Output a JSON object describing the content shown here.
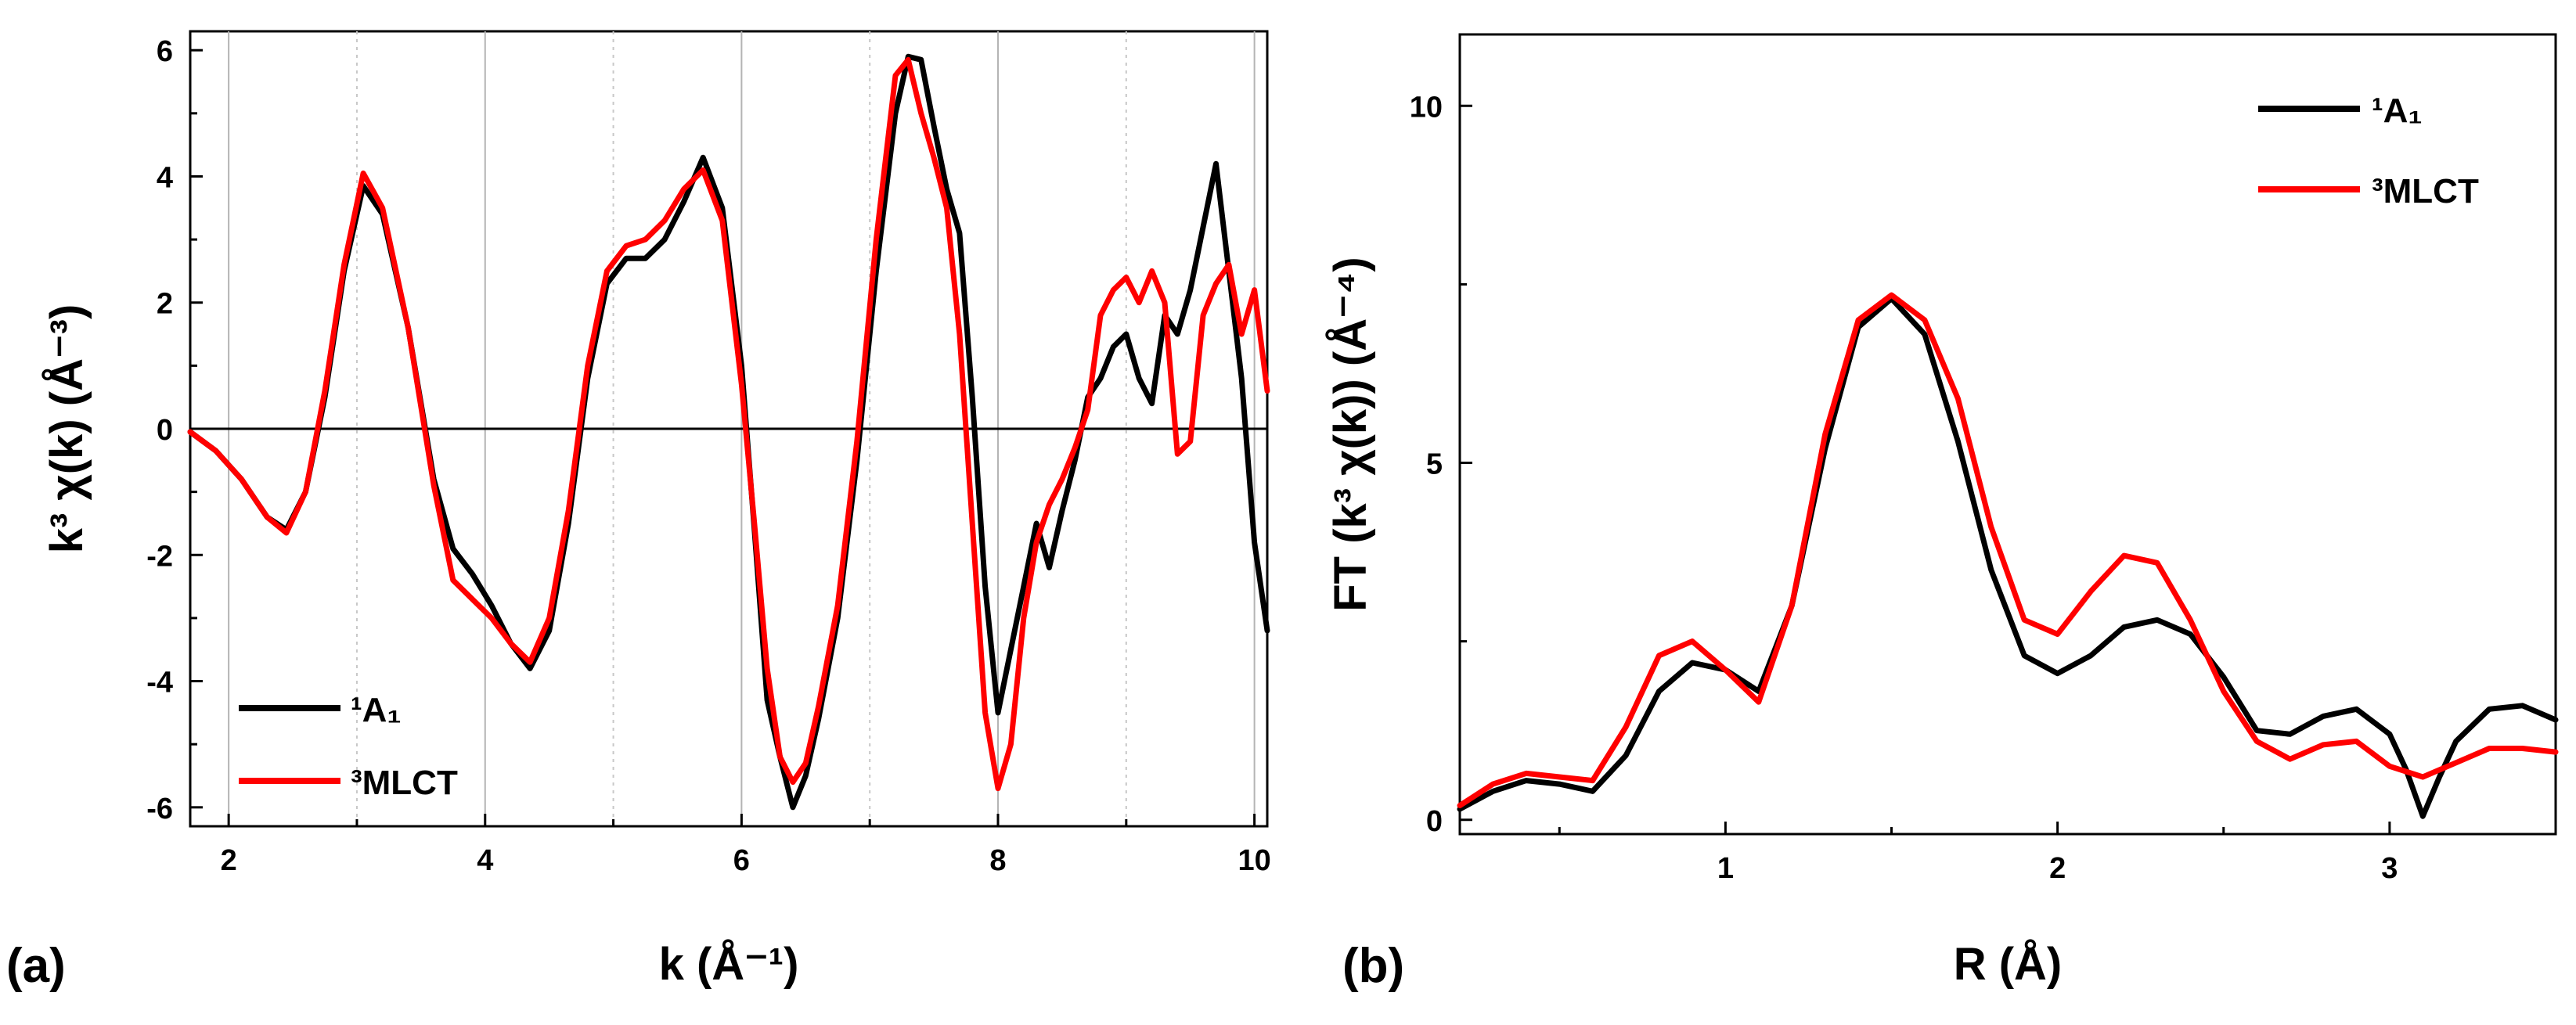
{
  "panels": {
    "a": {
      "label": "(a)"
    },
    "b": {
      "label": "(b)"
    }
  },
  "chart_data": [
    {
      "type": "line",
      "panel": "a",
      "xlabel": "k (Å⁻¹)",
      "ylabel": "k³ χ(k) (Å⁻³)",
      "xlim": [
        1.7,
        10.1
      ],
      "ylim": [
        -6.3,
        6.3
      ],
      "xticks": [
        2,
        4,
        6,
        8,
        10
      ],
      "yticks": [
        -6,
        -4,
        -2,
        0,
        2,
        4,
        6
      ],
      "vgrid_solid": [
        2,
        4,
        6,
        8,
        10
      ],
      "vgrid_dotted": [
        3,
        5,
        7,
        9
      ],
      "zero_line": true,
      "legend_position": "bottom-left",
      "series": [
        {
          "name": "¹A₁",
          "color": "#000000",
          "x": [
            1.7,
            1.9,
            2.1,
            2.3,
            2.45,
            2.6,
            2.75,
            2.9,
            3.05,
            3.2,
            3.4,
            3.6,
            3.75,
            3.9,
            4.05,
            4.2,
            4.35,
            4.5,
            4.65,
            4.8,
            4.95,
            5.1,
            5.25,
            5.4,
            5.55,
            5.7,
            5.85,
            6.0,
            6.1,
            6.2,
            6.3,
            6.4,
            6.5,
            6.6,
            6.75,
            6.9,
            7.05,
            7.2,
            7.3,
            7.4,
            7.5,
            7.6,
            7.7,
            7.8,
            7.9,
            8.0,
            8.1,
            8.2,
            8.3,
            8.4,
            8.5,
            8.6,
            8.7,
            8.8,
            8.9,
            9.0,
            9.1,
            9.2,
            9.3,
            9.4,
            9.5,
            9.6,
            9.7,
            9.8,
            9.9,
            10.0,
            10.1
          ],
          "y": [
            -0.05,
            -0.35,
            -0.8,
            -1.4,
            -1.6,
            -1.0,
            0.5,
            2.5,
            3.85,
            3.4,
            1.6,
            -0.8,
            -1.9,
            -2.3,
            -2.8,
            -3.4,
            -3.8,
            -3.2,
            -1.5,
            0.8,
            2.3,
            2.7,
            2.7,
            3.0,
            3.6,
            4.3,
            3.5,
            1.0,
            -1.6,
            -4.3,
            -5.2,
            -6.0,
            -5.5,
            -4.6,
            -3.0,
            -0.5,
            2.5,
            5.0,
            5.9,
            5.85,
            4.8,
            3.8,
            3.1,
            0.5,
            -2.5,
            -4.5,
            -3.5,
            -2.5,
            -1.5,
            -2.2,
            -1.3,
            -0.5,
            0.5,
            0.8,
            1.3,
            1.5,
            0.8,
            0.4,
            1.8,
            1.5,
            2.2,
            3.2,
            4.2,
            2.5,
            0.8,
            -1.8,
            -3.2
          ]
        },
        {
          "name": "³MLCT",
          "color": "#ff0000",
          "x": [
            1.7,
            1.9,
            2.1,
            2.3,
            2.45,
            2.6,
            2.75,
            2.9,
            3.05,
            3.2,
            3.4,
            3.6,
            3.75,
            3.9,
            4.05,
            4.2,
            4.35,
            4.5,
            4.65,
            4.8,
            4.95,
            5.1,
            5.25,
            5.4,
            5.55,
            5.7,
            5.85,
            6.0,
            6.1,
            6.2,
            6.3,
            6.4,
            6.5,
            6.6,
            6.75,
            6.9,
            7.05,
            7.2,
            7.3,
            7.4,
            7.5,
            7.6,
            7.7,
            7.8,
            7.9,
            8.0,
            8.1,
            8.2,
            8.3,
            8.4,
            8.5,
            8.6,
            8.7,
            8.8,
            8.9,
            9.0,
            9.1,
            9.2,
            9.3,
            9.4,
            9.5,
            9.6,
            9.7,
            9.8,
            9.9,
            10.0,
            10.1
          ],
          "y": [
            -0.05,
            -0.35,
            -0.8,
            -1.4,
            -1.65,
            -1.0,
            0.6,
            2.6,
            4.05,
            3.5,
            1.6,
            -0.9,
            -2.4,
            -2.7,
            -3.0,
            -3.4,
            -3.7,
            -3.0,
            -1.3,
            1.0,
            2.5,
            2.9,
            3.0,
            3.3,
            3.8,
            4.1,
            3.3,
            0.7,
            -1.5,
            -3.8,
            -5.2,
            -5.6,
            -5.3,
            -4.4,
            -2.8,
            -0.2,
            3.0,
            5.6,
            5.85,
            5.0,
            4.3,
            3.5,
            1.5,
            -1.5,
            -4.5,
            -5.7,
            -5.0,
            -3.0,
            -1.8,
            -1.2,
            -0.8,
            -0.3,
            0.3,
            1.8,
            2.2,
            2.4,
            2.0,
            2.5,
            2.0,
            -0.4,
            -0.2,
            1.8,
            2.3,
            2.6,
            1.5,
            2.2,
            0.6
          ]
        }
      ]
    },
    {
      "type": "line",
      "panel": "b",
      "xlabel": "R (Å)",
      "ylabel": "FT (k³ χ(k)) (Å⁻⁴)",
      "xlim": [
        0.2,
        3.5
      ],
      "ylim": [
        -0.2,
        11.0
      ],
      "xticks": [
        1,
        2,
        3
      ],
      "yticks": [
        0,
        5,
        10
      ],
      "legend_position": "top-right",
      "series": [
        {
          "name": "¹A₁",
          "color": "#000000",
          "x": [
            0.2,
            0.3,
            0.4,
            0.5,
            0.6,
            0.7,
            0.8,
            0.9,
            1.0,
            1.1,
            1.2,
            1.3,
            1.4,
            1.5,
            1.6,
            1.7,
            1.8,
            1.9,
            2.0,
            2.1,
            2.2,
            2.3,
            2.4,
            2.5,
            2.6,
            2.7,
            2.8,
            2.9,
            3.0,
            3.05,
            3.1,
            3.15,
            3.2,
            3.3,
            3.4,
            3.5
          ],
          "y": [
            0.15,
            0.4,
            0.55,
            0.5,
            0.4,
            0.9,
            1.8,
            2.2,
            2.1,
            1.8,
            3.0,
            5.2,
            6.9,
            7.3,
            6.8,
            5.3,
            3.5,
            2.3,
            2.05,
            2.3,
            2.7,
            2.8,
            2.6,
            2.0,
            1.25,
            1.2,
            1.45,
            1.55,
            1.2,
            0.7,
            0.05,
            0.6,
            1.1,
            1.55,
            1.6,
            1.4
          ]
        },
        {
          "name": "³MLCT",
          "color": "#ff0000",
          "x": [
            0.2,
            0.3,
            0.4,
            0.5,
            0.6,
            0.7,
            0.8,
            0.9,
            1.0,
            1.1,
            1.2,
            1.3,
            1.4,
            1.5,
            1.6,
            1.7,
            1.8,
            1.9,
            2.0,
            2.1,
            2.2,
            2.3,
            2.4,
            2.5,
            2.6,
            2.7,
            2.8,
            2.9,
            3.0,
            3.1,
            3.2,
            3.3,
            3.4,
            3.5
          ],
          "y": [
            0.2,
            0.5,
            0.65,
            0.6,
            0.55,
            1.3,
            2.3,
            2.5,
            2.1,
            1.65,
            3.0,
            5.4,
            7.0,
            7.35,
            7.0,
            5.9,
            4.1,
            2.8,
            2.6,
            3.2,
            3.7,
            3.6,
            2.8,
            1.8,
            1.1,
            0.85,
            1.05,
            1.1,
            0.75,
            0.6,
            0.8,
            1.0,
            1.0,
            0.95
          ]
        }
      ]
    }
  ]
}
